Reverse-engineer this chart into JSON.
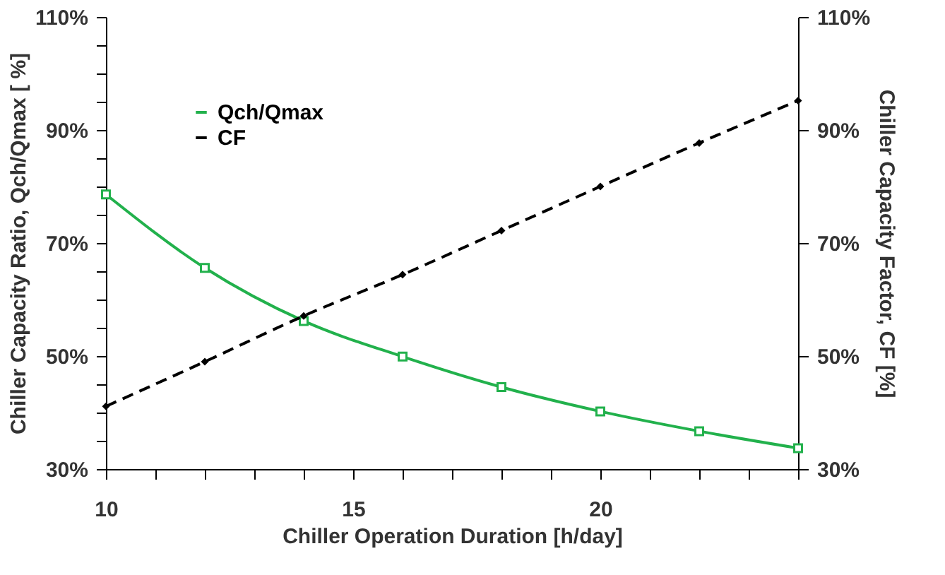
{
  "chart_data": {
    "type": "line",
    "xlabel": "Chiller Operation Duration [h/day]",
    "ylabel": "Chiller Capacity Ratio, Qch/Qmax [ %]",
    "y2label": "Chiller Capacity Factor, CF [%]",
    "x": [
      10,
      12,
      14,
      16,
      18,
      20,
      22,
      24
    ],
    "series": [
      {
        "name": "Qch/Qmax",
        "color": "#22b14c",
        "marker": "square",
        "line_style": "solid",
        "values": [
          78.6,
          65.6,
          56.2,
          49.9,
          44.5,
          40.2,
          36.7,
          33.7
        ]
      },
      {
        "name": "CF",
        "color": "#000000",
        "marker": "diamond",
        "line_style": "dashed",
        "axis": "y2",
        "values": [
          41.1,
          49.0,
          57.1,
          64.4,
          72.2,
          80.0,
          87.7,
          95.2
        ]
      }
    ],
    "xlim": [
      10,
      24
    ],
    "xticks": [
      10,
      {
        "value": 11,
        "label": null
      },
      {
        "value": 12,
        "label": null
      },
      {
        "value": 13,
        "label": null
      },
      {
        "value": 14,
        "label": null
      },
      15,
      {
        "value": 16,
        "label": null
      },
      {
        "value": 17,
        "label": null
      },
      {
        "value": 18,
        "label": null
      },
      {
        "value": 19,
        "label": null
      },
      20,
      {
        "value": 21,
        "label": null
      },
      {
        "value": 22,
        "label": null
      },
      {
        "value": 23,
        "label": null
      },
      {
        "value": 24,
        "label": null
      }
    ],
    "ylim": [
      30,
      110
    ],
    "yticks": [
      {
        "value": 30,
        "label": "30%"
      },
      {
        "value": 35,
        "label": null
      },
      {
        "value": 40,
        "label": null
      },
      {
        "value": 45,
        "label": null
      },
      {
        "value": 50,
        "label": "50%"
      },
      {
        "value": 55,
        "label": null
      },
      {
        "value": 60,
        "label": null
      },
      {
        "value": 65,
        "label": null
      },
      {
        "value": 70,
        "label": "70%"
      },
      {
        "value": 75,
        "label": null
      },
      {
        "value": 80,
        "label": null
      },
      {
        "value": 85,
        "label": null
      },
      {
        "value": 90,
        "label": "90%"
      },
      {
        "value": 95,
        "label": null
      },
      {
        "value": 100,
        "label": null
      },
      {
        "value": 105,
        "label": null
      },
      {
        "value": 110,
        "label": "110%"
      }
    ],
    "y2lim": [
      30,
      110
    ],
    "y2ticks": [
      {
        "value": 30,
        "label": "30%"
      },
      {
        "value": 50,
        "label": "50%"
      },
      {
        "value": 70,
        "label": "70%"
      },
      {
        "value": 90,
        "label": "90%"
      },
      {
        "value": 110,
        "label": "110%"
      }
    ],
    "grid": false,
    "legend": "top left"
  }
}
